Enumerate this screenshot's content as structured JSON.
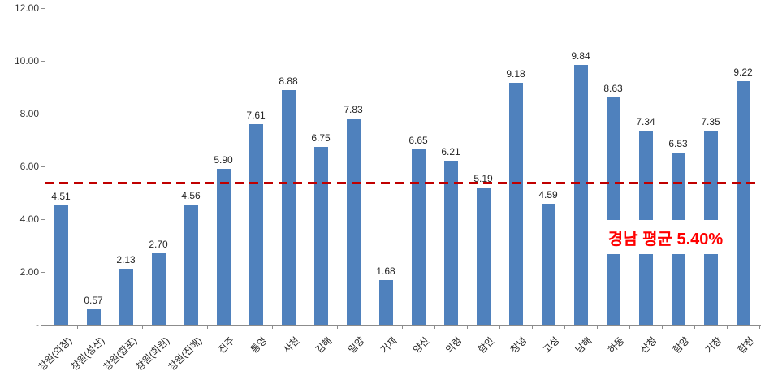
{
  "chart_data": {
    "type": "bar",
    "categories": [
      "창원(의창)",
      "창원(성산)",
      "창원(합포)",
      "창원(회원)",
      "창원(진해)",
      "진주",
      "통영",
      "사천",
      "김해",
      "밀양",
      "거제",
      "양산",
      "의령",
      "함안",
      "창녕",
      "고성",
      "남해",
      "하동",
      "산청",
      "함양",
      "거창",
      "합천"
    ],
    "values": [
      4.51,
      0.57,
      2.13,
      2.7,
      4.56,
      5.9,
      7.61,
      8.88,
      6.75,
      7.83,
      1.68,
      6.65,
      6.21,
      5.19,
      9.18,
      4.59,
      9.84,
      8.63,
      7.34,
      6.53,
      7.35,
      9.22
    ],
    "value_label_decimals": 2,
    "title": "",
    "xlabel": "",
    "ylabel": "",
    "ylim": [
      0,
      12
    ],
    "y_ticks": [
      "12.00",
      "10.00",
      "8.00",
      "6.00",
      "4.00",
      "2.00",
      "-"
    ],
    "grid": false,
    "legend": false,
    "bar_color": "#4f81bd",
    "average_line": {
      "value": 5.4,
      "style": "dashed",
      "color": "#c00000"
    },
    "annotation": {
      "text": "경남 평균 5.40%",
      "color": "#ff0000"
    }
  }
}
